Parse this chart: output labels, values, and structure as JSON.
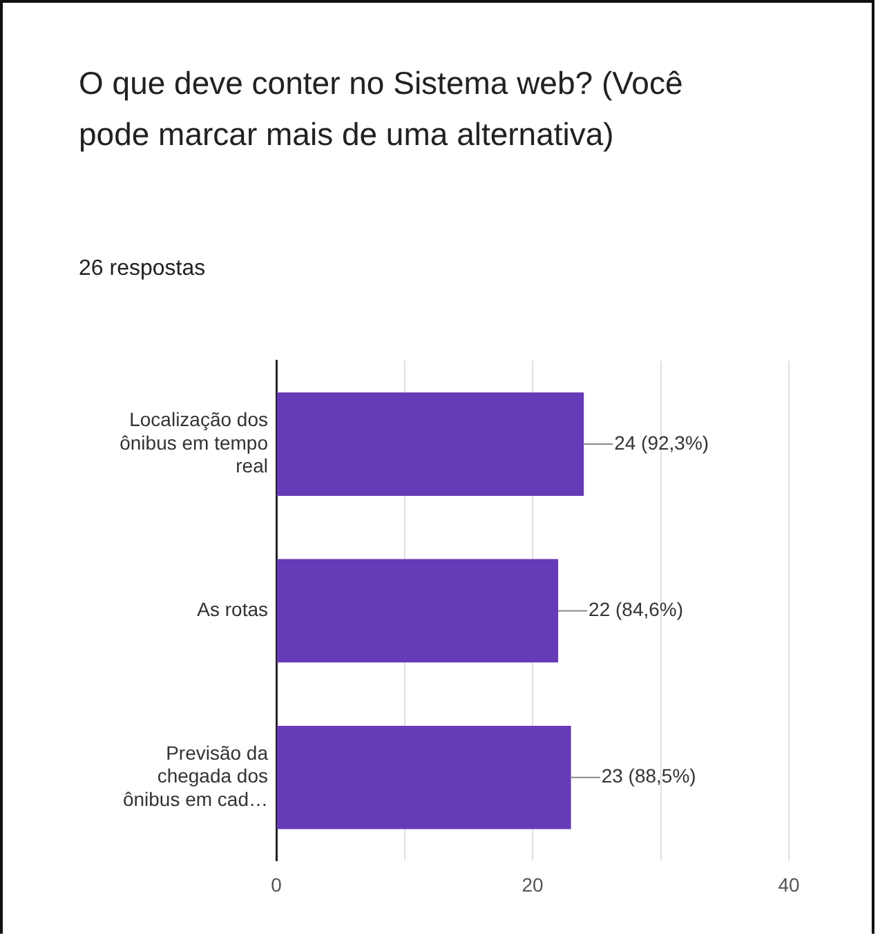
{
  "chart_data": {
    "type": "bar",
    "orientation": "horizontal",
    "title": "O que deve conter no Sistema web? (Você pode marcar mais de uma alternativa)",
    "subtitle": "26 respostas",
    "categories": [
      "Localização dos ônibus em tempo real",
      "As rotas",
      "Previsão da chegada dos ônibus em cad…"
    ],
    "values": [
      24,
      22,
      23
    ],
    "value_labels": [
      "24 (92,3%)",
      "22 (84,6%)",
      "23 (88,5%)"
    ],
    "color": "#673ab7",
    "xlim": [
      0,
      40
    ],
    "xticks": [
      0,
      {
        "value": 10,
        "label": null
      },
      20,
      {
        "value": 30,
        "label": null
      },
      40
    ],
    "grid": "x",
    "legend": false
  }
}
